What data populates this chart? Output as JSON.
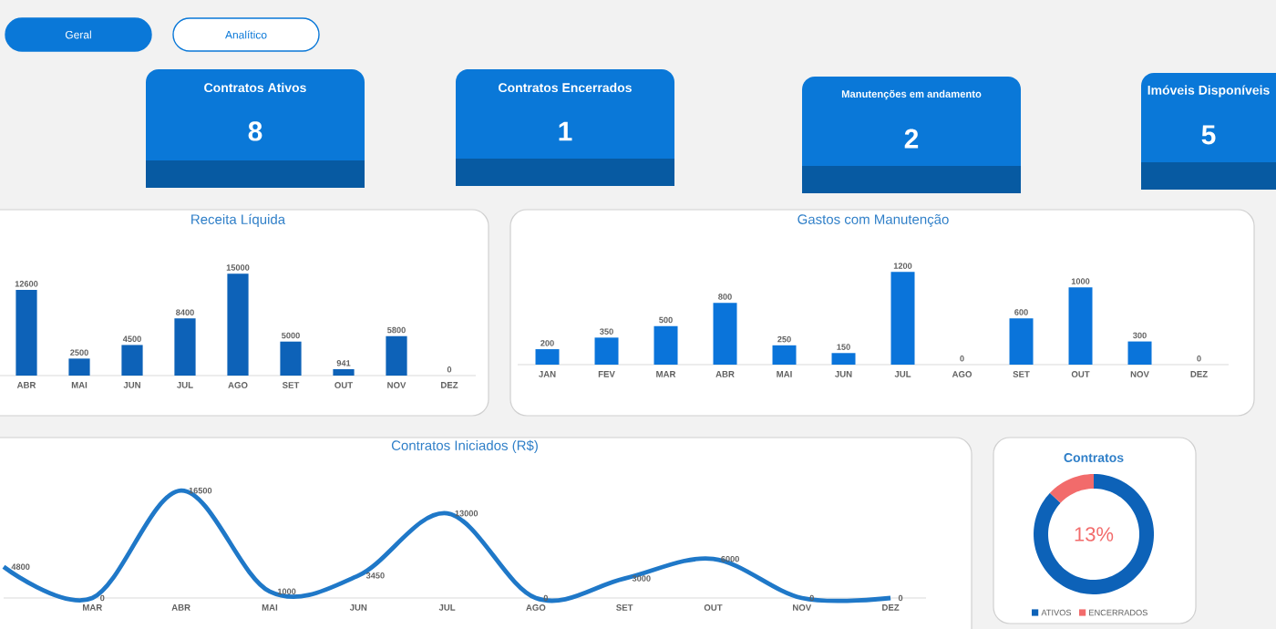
{
  "chart_data": [
    {
      "type": "other",
      "categories": [
        "Contratos Ativos",
        "Contratos Encerrados",
        "Manutenções em andamento",
        "Imóveis Disponíveis"
      ],
      "values": [
        8,
        1,
        2,
        5
      ],
      "data_labels": true,
      "color": "#0a78d8",
      "annotations": [
        "Geral",
        "Analítico"
      ]
    },
    {
      "type": "bar",
      "title": "Receita Líquida",
      "categories": [
        "ABR",
        "MAI",
        "JUN",
        "JUL",
        "AGO",
        "SET",
        "OUT",
        "NOV",
        "DEZ"
      ],
      "values": [
        12600,
        2500,
        4500,
        8400,
        15000,
        5000,
        941,
        5800,
        0
      ],
      "color": "#0d62b8",
      "data_labels": true
    },
    {
      "type": "bar",
      "title": "Gastos com Manutenção",
      "categories": [
        "JAN",
        "FEV",
        "MAR",
        "ABR",
        "MAI",
        "JUN",
        "JUL",
        "AGO",
        "SET",
        "OUT",
        "NOV",
        "DEZ"
      ],
      "values": [
        200,
        350,
        500,
        800,
        250,
        150,
        1200,
        0,
        600,
        1000,
        300,
        0
      ],
      "color": "#0a74da",
      "data_labels": true
    },
    {
      "type": "line",
      "title": "Contratos Iniciados (R$)",
      "categories": [
        null,
        "MAR",
        "ABR",
        "MAI",
        "JUN",
        "JUL",
        "AGO",
        "SET",
        "OUT",
        "NOV",
        "DEZ"
      ],
      "values": [
        4800,
        0,
        16500,
        1000,
        3450,
        13000,
        0,
        3000,
        6000,
        0,
        0
      ],
      "color": "#1f78c8",
      "data_labels": true
    },
    {
      "type": "donut",
      "title": "Contratos",
      "categories": [
        "ATIVOS",
        "ENCERRADOS"
      ],
      "values": [
        87,
        13
      ],
      "colors": [
        "#0d62b8",
        "#f26b6b"
      ],
      "legend": "bottom",
      "annotations": [
        "13%"
      ]
    }
  ]
}
